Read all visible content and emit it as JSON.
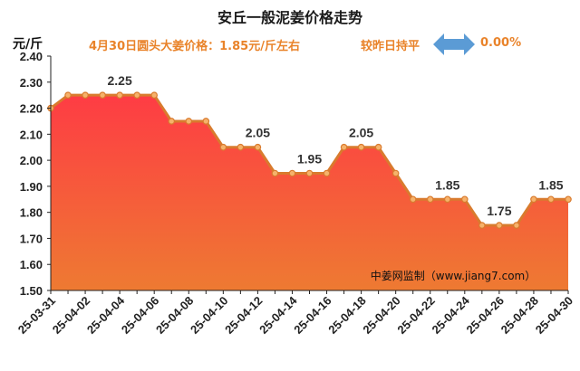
{
  "title": "安丘一般泥姜价格走势",
  "subtitle": "4月30日圆头大姜价格：1.85元/斤左右",
  "compare_label": "较昨日持平",
  "change_value": "0.00%",
  "watermark": "中姜网监制（www.jiang7.com）",
  "colors": {
    "line": "#d97b2e",
    "marker_fill": "#f6b26b",
    "area_top": "#fe3c44",
    "area_bottom": "#ee7a32",
    "arrow": "#5b9bd5",
    "accent_text": "#e9832a"
  },
  "chart_data": {
    "type": "area",
    "title": "安丘一般泥姜价格走势",
    "ylabel": "元/斤",
    "xlabel": "",
    "ylim": [
      1.5,
      2.4
    ],
    "yticks": [
      1.5,
      1.6,
      1.7,
      1.8,
      1.9,
      2.0,
      2.1,
      2.2,
      2.3,
      2.4
    ],
    "ytick_labels": [
      "1.50",
      "1.60",
      "1.70",
      "1.80",
      "1.90",
      "2.00",
      "2.10",
      "2.20",
      "2.30",
      "2.40"
    ],
    "grid": false,
    "x": [
      "25-03-31",
      "25-04-01",
      "25-04-02",
      "25-04-03",
      "25-04-04",
      "25-04-05",
      "25-04-06",
      "25-04-07",
      "25-04-08",
      "25-04-09",
      "25-04-10",
      "25-04-11",
      "25-04-12",
      "25-04-13",
      "25-04-14",
      "25-04-15",
      "25-04-16",
      "25-04-17",
      "25-04-18",
      "25-04-19",
      "25-04-20",
      "25-04-21",
      "25-04-22",
      "25-04-23",
      "25-04-24",
      "25-04-25",
      "25-04-26",
      "25-04-27",
      "25-04-28",
      "25-04-29",
      "25-04-30"
    ],
    "xtick_labels": [
      "25-03-31",
      "25-04-02",
      "25-04-04",
      "25-04-06",
      "25-04-08",
      "25-04-10",
      "25-04-12",
      "25-04-14",
      "25-04-16",
      "25-04-18",
      "25-04-20",
      "25-04-22",
      "25-04-24",
      "25-04-26",
      "25-04-28",
      "25-04-30"
    ],
    "values": [
      2.2,
      2.25,
      2.25,
      2.25,
      2.25,
      2.25,
      2.25,
      2.15,
      2.15,
      2.15,
      2.05,
      2.05,
      2.05,
      1.95,
      1.95,
      1.95,
      1.95,
      2.05,
      2.05,
      2.05,
      1.95,
      1.85,
      1.85,
      1.85,
      1.85,
      1.75,
      1.75,
      1.75,
      1.85,
      1.85,
      1.85
    ],
    "annotations": [
      {
        "x": "25-04-04",
        "label": "2.25"
      },
      {
        "x": "25-04-12",
        "label": "2.05"
      },
      {
        "x": "25-04-15",
        "label": "1.95"
      },
      {
        "x": "25-04-18",
        "label": "2.05"
      },
      {
        "x": "25-04-23",
        "label": "1.85"
      },
      {
        "x": "25-04-26",
        "label": "1.75"
      },
      {
        "x": "25-04-29",
        "label": "1.85"
      }
    ]
  }
}
